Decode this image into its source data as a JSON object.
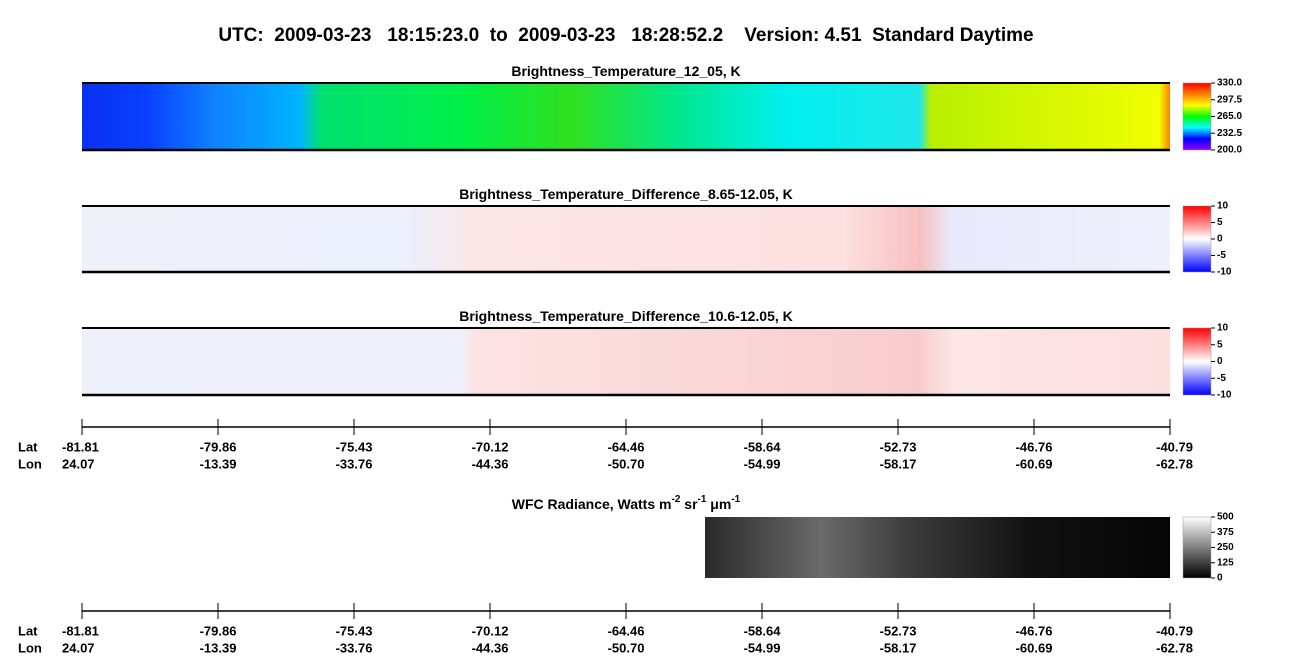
{
  "title": "UTC:  2009-03-23   18:15:23.0  to  2009-03-23   18:28:52.2    Version: 4.51  Standard Daytime",
  "panels": [
    {
      "title": [
        "Brightness_Temperature_12_05, K"
      ],
      "colorbar": {
        "range": [
          200,
          330
        ],
        "ticks": [
          {
            "value": 330,
            "label": "330.0"
          },
          {
            "value": 297.5,
            "label": "297.5"
          },
          {
            "value": 265,
            "label": "265.0"
          },
          {
            "value": 232.5,
            "label": "232.5"
          },
          {
            "value": 200,
            "label": "200.0"
          }
        ],
        "colors": [
          "#9400ff",
          "#0000ff",
          "#00ffff",
          "#00ff00",
          "#ffff00",
          "#ff8000",
          "#ff0000"
        ]
      }
    },
    {
      "title": [
        "Brightness_Temperature_Difference_8.65-12.05, K"
      ],
      "colorbar": {
        "range": [
          -10,
          10
        ],
        "ticks": [
          10,
          5,
          0,
          -5,
          -10
        ],
        "colors": [
          "#0000ff",
          "#ffffff",
          "#ff0000"
        ]
      }
    },
    {
      "title": [
        "Brightness_Temperature_Difference_10.6-12.05, K"
      ],
      "colorbar": {
        "range": [
          -10,
          10
        ],
        "ticks": [
          10,
          5,
          0,
          -5,
          -10
        ],
        "colors": [
          "#0000ff",
          "#ffffff",
          "#ff0000"
        ]
      }
    },
    {
      "title": [
        "WFC Radiance, Watts m",
        "-2",
        " sr",
        "-1",
        " μm",
        "-1"
      ],
      "colorbar": {
        "range": [
          0,
          500
        ],
        "ticks": [
          500,
          375,
          250,
          125,
          0
        ],
        "colors": [
          "#000000",
          "#ffffff"
        ]
      }
    }
  ],
  "axes": [
    {
      "lat_label": "Lat",
      "lon_label": "Lon",
      "lat": [
        -81.81,
        -79.86,
        -75.43,
        -70.12,
        -64.46,
        -58.64,
        -52.73,
        -46.76,
        -40.79
      ],
      "lon": [
        24.07,
        -13.39,
        -33.76,
        -44.36,
        {
          "value": -50.7,
          "label": "-50.70"
        },
        -54.99,
        -58.17,
        -60.69,
        -62.78
      ]
    },
    {
      "lat_label": "Lat",
      "lon_label": "Lon",
      "lat": [
        -81.81,
        -79.86,
        -75.43,
        -70.12,
        -64.46,
        -58.64,
        -52.73,
        -46.76,
        -40.79
      ],
      "lon": [
        24.07,
        -13.39,
        -33.76,
        -44.36,
        {
          "value": -50.7,
          "label": "-50.70"
        },
        -54.99,
        -58.17,
        -60.69,
        -62.78
      ]
    }
  ]
}
